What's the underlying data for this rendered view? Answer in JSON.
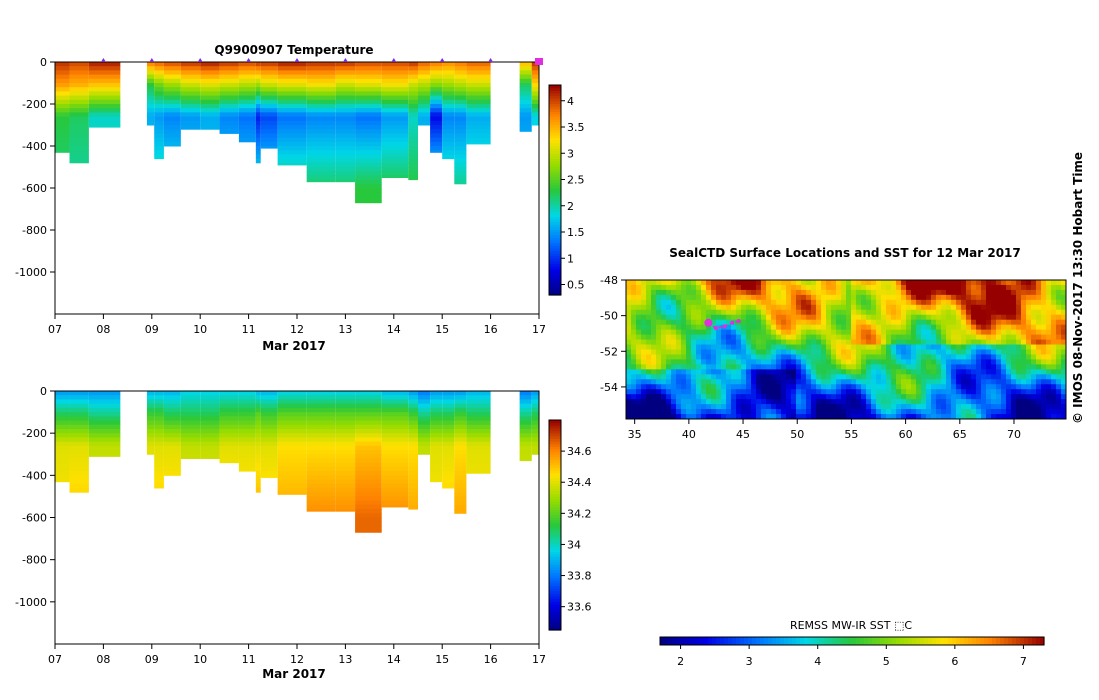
{
  "page": {
    "credit": "© IMOS 08-Nov-2017 13:30 Hobart Time"
  },
  "chart_data": [
    {
      "type": "heatmap",
      "id": "temperature",
      "title": "Q9900907  Temperature",
      "xlabel": "Mar 2017",
      "ylabel": "",
      "x_ticks": [
        "07",
        "08",
        "09",
        "10",
        "11",
        "12",
        "13",
        "14",
        "15",
        "16",
        "17"
      ],
      "xlim": [
        7,
        17
      ],
      "ylim": [
        -1200,
        0
      ],
      "y_ticks": [
        0,
        -200,
        -400,
        -600,
        -800,
        -1000
      ],
      "profile_marker_days": [
        8,
        9,
        10,
        11,
        12,
        13,
        14,
        15,
        16,
        17
      ],
      "colorbar": {
        "ticks": [
          "4",
          "3.5",
          "3",
          "2.5",
          "2",
          "1.5",
          "1",
          "0.5"
        ],
        "min": 0.3,
        "max": 4.3
      },
      "profiles": [
        {
          "x0": 7.0,
          "x1": 7.3,
          "bottom": -430,
          "values": [
            4.1,
            3.6,
            2.3,
            2.1
          ]
        },
        {
          "x0": 7.3,
          "x1": 7.7,
          "bottom": -480,
          "values": [
            4.0,
            3.5,
            2.2,
            2.0
          ]
        },
        {
          "x0": 7.7,
          "x1": 8.35,
          "bottom": -310,
          "values": [
            4.2,
            3.4,
            1.9,
            2.0
          ]
        },
        {
          "x0": 8.9,
          "x1": 9.05,
          "bottom": -300,
          "values": [
            3.8,
            2.3,
            1.6,
            2.0
          ]
        },
        {
          "x0": 9.05,
          "x1": 9.25,
          "bottom": -460,
          "values": [
            3.9,
            2.6,
            1.5,
            2.1
          ]
        },
        {
          "x0": 9.25,
          "x1": 9.6,
          "bottom": -400,
          "values": [
            4.0,
            2.8,
            1.4,
            2.0
          ]
        },
        {
          "x0": 9.6,
          "x1": 10.0,
          "bottom": -320,
          "values": [
            4.1,
            3.0,
            1.5,
            1.9
          ]
        },
        {
          "x0": 10.0,
          "x1": 10.4,
          "bottom": -320,
          "values": [
            4.2,
            3.1,
            1.6,
            1.8
          ]
        },
        {
          "x0": 10.4,
          "x1": 10.8,
          "bottom": -340,
          "values": [
            4.1,
            3.0,
            1.4,
            1.9
          ]
        },
        {
          "x0": 10.8,
          "x1": 11.15,
          "bottom": -380,
          "values": [
            4.0,
            2.9,
            1.3,
            1.9
          ]
        },
        {
          "x0": 11.15,
          "x1": 11.25,
          "bottom": -480,
          "values": [
            4.1,
            2.8,
            0.9,
            2.1
          ]
        },
        {
          "x0": 11.25,
          "x1": 11.6,
          "bottom": -410,
          "values": [
            4.1,
            3.0,
            1.1,
            2.0
          ]
        },
        {
          "x0": 11.6,
          "x1": 12.2,
          "bottom": -490,
          "values": [
            4.2,
            3.1,
            1.3,
            2.2
          ]
        },
        {
          "x0": 12.2,
          "x1": 12.8,
          "bottom": -570,
          "values": [
            4.1,
            3.2,
            1.4,
            2.2
          ]
        },
        {
          "x0": 12.8,
          "x1": 13.2,
          "bottom": -570,
          "values": [
            4.1,
            3.0,
            1.4,
            2.2
          ]
        },
        {
          "x0": 13.2,
          "x1": 13.75,
          "bottom": -670,
          "values": [
            4.0,
            3.1,
            1.3,
            2.3
          ]
        },
        {
          "x0": 13.75,
          "x1": 14.3,
          "bottom": -550,
          "values": [
            4.0,
            3.2,
            1.5,
            2.3
          ]
        },
        {
          "x0": 14.3,
          "x1": 14.5,
          "bottom": -560,
          "values": [
            4.1,
            3.0,
            1.9,
            2.3
          ]
        },
        {
          "x0": 14.5,
          "x1": 14.75,
          "bottom": -300,
          "values": [
            3.9,
            2.9,
            1.6,
            2.0
          ]
        },
        {
          "x0": 14.75,
          "x1": 15.0,
          "bottom": -430,
          "values": [
            3.8,
            2.7,
            0.8,
            2.1
          ]
        },
        {
          "x0": 15.0,
          "x1": 15.25,
          "bottom": -460,
          "values": [
            3.7,
            2.8,
            1.4,
            2.1
          ]
        },
        {
          "x0": 15.25,
          "x1": 15.5,
          "bottom": -580,
          "values": [
            3.8,
            2.9,
            1.4,
            2.1
          ]
        },
        {
          "x0": 15.5,
          "x1": 16.0,
          "bottom": -390,
          "values": [
            3.9,
            3.0,
            1.6,
            2.1
          ]
        },
        {
          "x0": 16.6,
          "x1": 16.85,
          "bottom": -330,
          "values": [
            3.5,
            2.2,
            1.5,
            1.8
          ]
        },
        {
          "x0": 16.85,
          "x1": 17.05,
          "bottom": -300,
          "values": [
            4.1,
            3.3,
            1.8,
            2.0
          ]
        }
      ]
    },
    {
      "type": "heatmap",
      "id": "salinity",
      "title": "",
      "xlabel": "Mar 2017",
      "ylabel": "",
      "x_ticks": [
        "07",
        "08",
        "09",
        "10",
        "11",
        "12",
        "13",
        "14",
        "15",
        "16",
        "17"
      ],
      "xlim": [
        7,
        17
      ],
      "ylim": [
        -1200,
        0
      ],
      "y_ticks": [
        0,
        -200,
        -400,
        -600,
        -800,
        -1000
      ],
      "colorbar": {
        "ticks": [
          "34.6",
          "34.4",
          "34.2",
          "34",
          "33.8",
          "33.6"
        ],
        "min": 33.45,
        "max": 34.8
      },
      "profiles": [
        {
          "x0": 7.0,
          "x1": 7.3,
          "bottom": -430,
          "values": [
            33.85,
            34.1,
            34.4,
            34.45
          ]
        },
        {
          "x0": 7.3,
          "x1": 7.7,
          "bottom": -480,
          "values": [
            33.85,
            34.1,
            34.4,
            34.5
          ]
        },
        {
          "x0": 7.7,
          "x1": 8.35,
          "bottom": -310,
          "values": [
            33.85,
            34.05,
            34.35,
            34.4
          ]
        },
        {
          "x0": 8.9,
          "x1": 9.05,
          "bottom": -300,
          "values": [
            33.9,
            34.15,
            34.4,
            34.45
          ]
        },
        {
          "x0": 9.05,
          "x1": 9.25,
          "bottom": -460,
          "values": [
            33.9,
            34.15,
            34.4,
            34.5
          ]
        },
        {
          "x0": 9.25,
          "x1": 9.6,
          "bottom": -400,
          "values": [
            33.9,
            34.1,
            34.4,
            34.5
          ]
        },
        {
          "x0": 9.6,
          "x1": 10.0,
          "bottom": -320,
          "values": [
            33.95,
            34.1,
            34.35,
            34.45
          ]
        },
        {
          "x0": 10.0,
          "x1": 10.4,
          "bottom": -320,
          "values": [
            33.95,
            34.1,
            34.35,
            34.45
          ]
        },
        {
          "x0": 10.4,
          "x1": 10.8,
          "bottom": -340,
          "values": [
            33.95,
            34.15,
            34.4,
            34.5
          ]
        },
        {
          "x0": 10.8,
          "x1": 11.15,
          "bottom": -380,
          "values": [
            33.95,
            34.15,
            34.4,
            34.5
          ]
        },
        {
          "x0": 11.15,
          "x1": 11.25,
          "bottom": -480,
          "values": [
            33.9,
            34.2,
            34.4,
            34.55
          ]
        },
        {
          "x0": 11.25,
          "x1": 11.6,
          "bottom": -410,
          "values": [
            33.9,
            34.15,
            34.4,
            34.5
          ]
        },
        {
          "x0": 11.6,
          "x1": 12.2,
          "bottom": -490,
          "values": [
            33.95,
            34.2,
            34.45,
            34.55
          ]
        },
        {
          "x0": 12.2,
          "x1": 12.8,
          "bottom": -570,
          "values": [
            33.95,
            34.2,
            34.45,
            34.6
          ]
        },
        {
          "x0": 12.8,
          "x1": 13.2,
          "bottom": -570,
          "values": [
            33.95,
            34.2,
            34.45,
            34.6
          ]
        },
        {
          "x0": 13.2,
          "x1": 13.75,
          "bottom": -670,
          "values": [
            33.95,
            34.2,
            34.5,
            34.65
          ]
        },
        {
          "x0": 13.75,
          "x1": 14.3,
          "bottom": -550,
          "values": [
            33.9,
            34.2,
            34.45,
            34.6
          ]
        },
        {
          "x0": 14.3,
          "x1": 14.5,
          "bottom": -560,
          "values": [
            33.85,
            34.15,
            34.45,
            34.55
          ]
        },
        {
          "x0": 14.5,
          "x1": 14.75,
          "bottom": -300,
          "values": [
            33.8,
            34.05,
            34.35,
            34.4
          ]
        },
        {
          "x0": 14.75,
          "x1": 15.0,
          "bottom": -430,
          "values": [
            33.85,
            34.1,
            34.4,
            34.45
          ]
        },
        {
          "x0": 15.0,
          "x1": 15.25,
          "bottom": -460,
          "values": [
            33.85,
            34.1,
            34.4,
            34.5
          ]
        },
        {
          "x0": 15.25,
          "x1": 15.5,
          "bottom": -580,
          "values": [
            33.85,
            34.15,
            34.45,
            34.55
          ]
        },
        {
          "x0": 15.5,
          "x1": 16.0,
          "bottom": -390,
          "values": [
            33.9,
            34.1,
            34.4,
            34.45
          ]
        },
        {
          "x0": 16.6,
          "x1": 16.85,
          "bottom": -330,
          "values": [
            33.8,
            34.05,
            34.35,
            34.4
          ]
        },
        {
          "x0": 16.85,
          "x1": 17.05,
          "bottom": -300,
          "values": [
            33.85,
            34.1,
            34.35,
            34.4
          ]
        }
      ]
    },
    {
      "type": "heatmap",
      "id": "sst-map",
      "title": "SealCTD Surface Locations and SST for 12 Mar 2017",
      "xlabel": "",
      "ylabel": "",
      "xlim": [
        34.2,
        74.8
      ],
      "ylim": [
        -55.8,
        -48
      ],
      "x_ticks": [
        "35",
        "40",
        "45",
        "50",
        "55",
        "60",
        "65",
        "70"
      ],
      "y_ticks": [
        "-48",
        "-50",
        "-52",
        "-54"
      ],
      "colorbar": {
        "label": "REMSS MW-IR SST ⬚C",
        "ticks": [
          "2",
          "3",
          "4",
          "5",
          "6",
          "7"
        ],
        "min": 1.7,
        "max": 7.3
      },
      "track": [
        {
          "lon": 41.8,
          "lat": -50.4
        },
        {
          "lon": 42.5,
          "lat": -50.7
        },
        {
          "lon": 43.3,
          "lat": -50.6
        },
        {
          "lon": 44.0,
          "lat": -50.4
        },
        {
          "lon": 44.6,
          "lat": -50.3
        }
      ],
      "track_color": "#e02ee0"
    }
  ]
}
